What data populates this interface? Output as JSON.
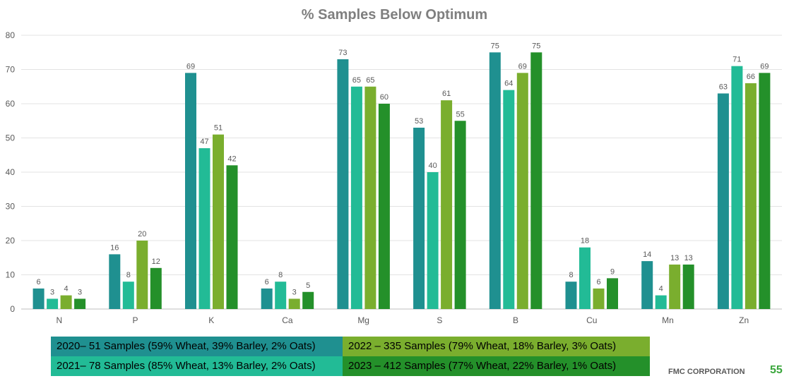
{
  "chart_data": {
    "type": "bar",
    "title": "% Samples Below Optimum",
    "categories": [
      "N",
      "P",
      "K",
      "Ca",
      "Mg",
      "S",
      "B",
      "Cu",
      "Mn",
      "Zn"
    ],
    "ylim": [
      0,
      80
    ],
    "yticks": [
      0,
      10,
      20,
      30,
      40,
      50,
      60,
      70,
      80
    ],
    "grid": true,
    "legend_position": "bottom",
    "series": [
      {
        "name": "2020– 51 Samples (59% Wheat, 39% Barley, 2% Oats)",
        "color": "#1f9090",
        "values": [
          6,
          16,
          69,
          6,
          73,
          53,
          75,
          8,
          14,
          63
        ]
      },
      {
        "name": "2021– 78 Samples (85% Wheat, 13% Barley, 2% Oats)",
        "color": "#22bb96",
        "values": [
          3,
          8,
          47,
          8,
          65,
          40,
          64,
          18,
          4,
          71
        ]
      },
      {
        "name": "2022 – 335 Samples (79% Wheat, 18% Barley, 3% Oats)",
        "color": "#7aae2e",
        "values": [
          4,
          20,
          51,
          3,
          65,
          61,
          69,
          6,
          13,
          66
        ]
      },
      {
        "name": "2023 – 412 Samples (77% Wheat, 22% Barley, 1% Oats)",
        "color": "#24902a",
        "values": [
          3,
          12,
          42,
          5,
          60,
          55,
          75,
          9,
          13,
          69
        ]
      }
    ]
  },
  "footer": {
    "company": "FMC CORPORATION",
    "page": "55"
  }
}
